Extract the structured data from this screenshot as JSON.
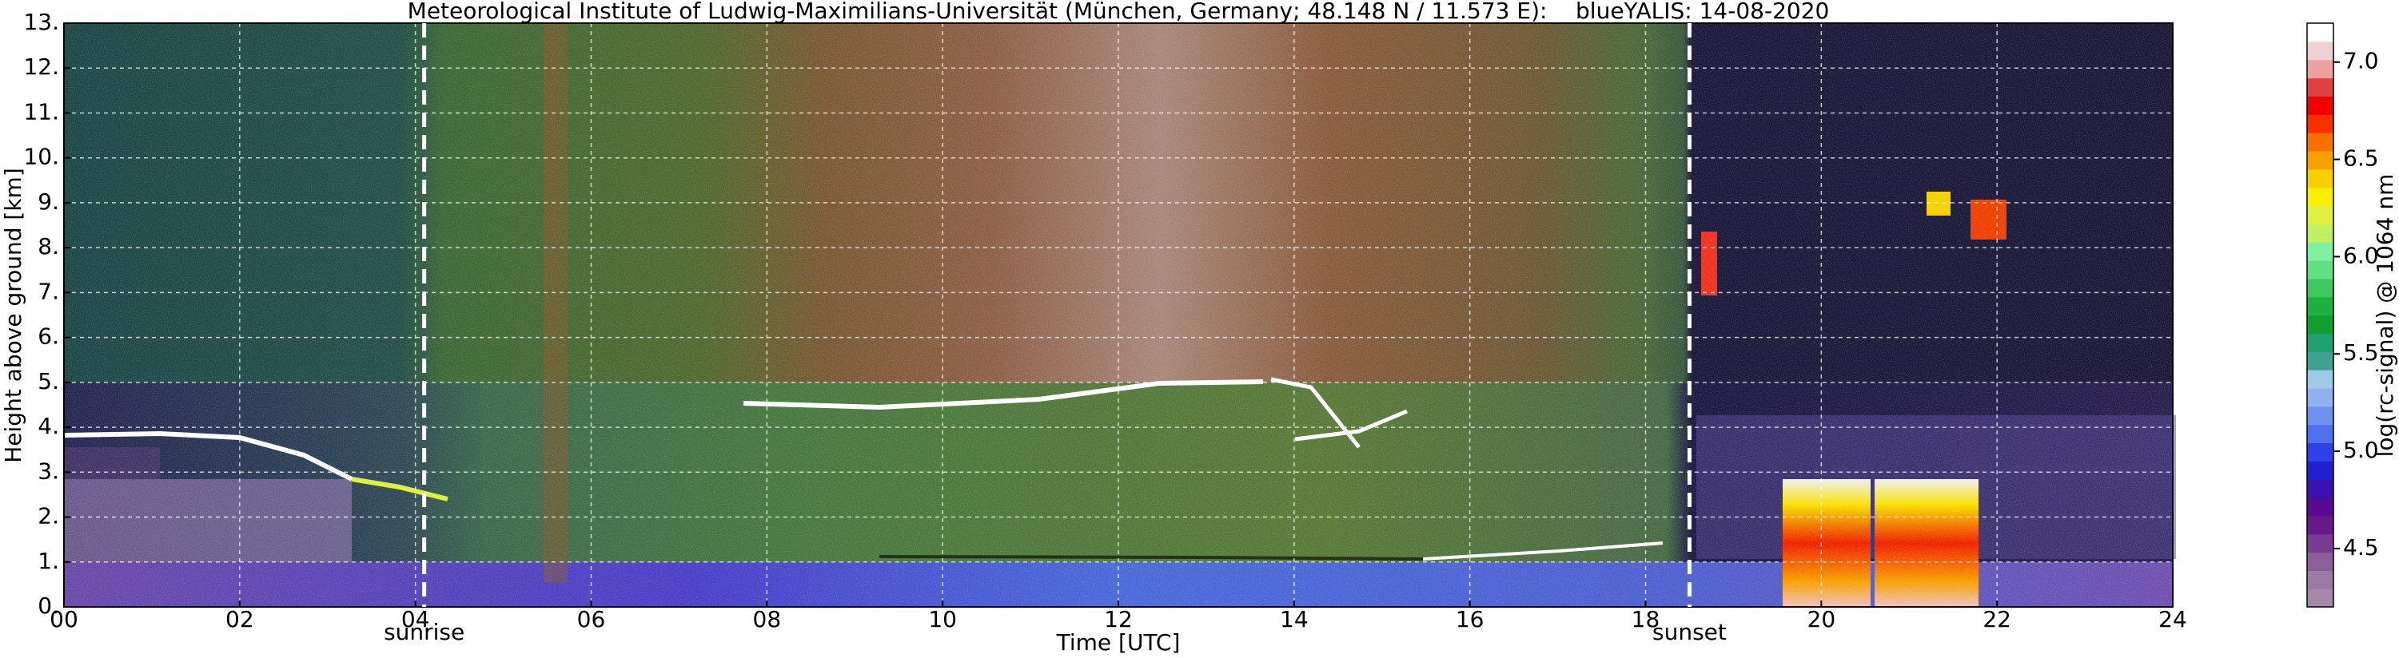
{
  "chart_data": {
    "type": "heatmap",
    "title": "Meteorological Institute of Ludwig-Maximilians-Universität (München, Germany; 48.148 N / 11.573 E):    blueYALIS: 14-08-2020",
    "x_label": "Time [UTC]",
    "y_label": "Height above ground [km]",
    "xlim": [
      0,
      24
    ],
    "xticks": [
      {
        "value": 0,
        "label": "00"
      },
      {
        "value": 2,
        "label": "02"
      },
      {
        "value": 4,
        "label": "04"
      },
      {
        "value": 6,
        "label": "06"
      },
      {
        "value": 8,
        "label": "08"
      },
      10,
      12,
      14,
      16,
      18,
      20,
      22,
      24
    ],
    "ylim": [
      0,
      13
    ],
    "yticks": [
      {
        "value": 0,
        "label": "0."
      },
      {
        "value": 1,
        "label": "1."
      },
      {
        "value": 2,
        "label": "2."
      },
      {
        "value": 3,
        "label": "3."
      },
      {
        "value": 4,
        "label": "4."
      },
      {
        "value": 5,
        "label": "5."
      },
      {
        "value": 6,
        "label": "6."
      },
      {
        "value": 7,
        "label": "7."
      },
      {
        "value": 8,
        "label": "8."
      },
      {
        "value": 9,
        "label": "9."
      },
      {
        "value": 10,
        "label": "10."
      },
      {
        "value": 11,
        "label": "11."
      },
      {
        "value": 12,
        "label": "12."
      },
      {
        "value": 13,
        "label": "13."
      }
    ],
    "grid": true,
    "annotations": [
      {
        "text": "sunrise",
        "x": 4.1
      },
      {
        "text": "sunset",
        "x": 18.5
      }
    ],
    "colorbar": {
      "label": "log(rc-signal) @ 1064 nm",
      "lim": [
        4.2,
        7.2
      ],
      "ticks": [
        4.5,
        {
          "value": 5.0,
          "label": "5.0"
        },
        5.5,
        {
          "value": 6.0,
          "label": "6.0"
        },
        6.5,
        {
          "value": 7.0,
          "label": "7.0"
        }
      ],
      "colors": [
        "#a48aa8",
        "#9a7aa4",
        "#8c5e9c",
        "#7a3c92",
        "#6a1a88",
        "#5a0a90",
        "#3a10b0",
        "#2020d0",
        "#3040e8",
        "#5070f0",
        "#7090f0",
        "#90b0f0",
        "#a0c8e8",
        "#40a090",
        "#20a070",
        "#10a030",
        "#20b040",
        "#40c860",
        "#60e080",
        "#80f0a0",
        "#c0f060",
        "#e0f040",
        "#f8f000",
        "#f8d000",
        "#f8a000",
        "#f87000",
        "#f83000",
        "#f00000",
        "#e04040",
        "#f0a0a0",
        "#f0d0d0",
        "#ffffff"
      ]
    }
  }
}
